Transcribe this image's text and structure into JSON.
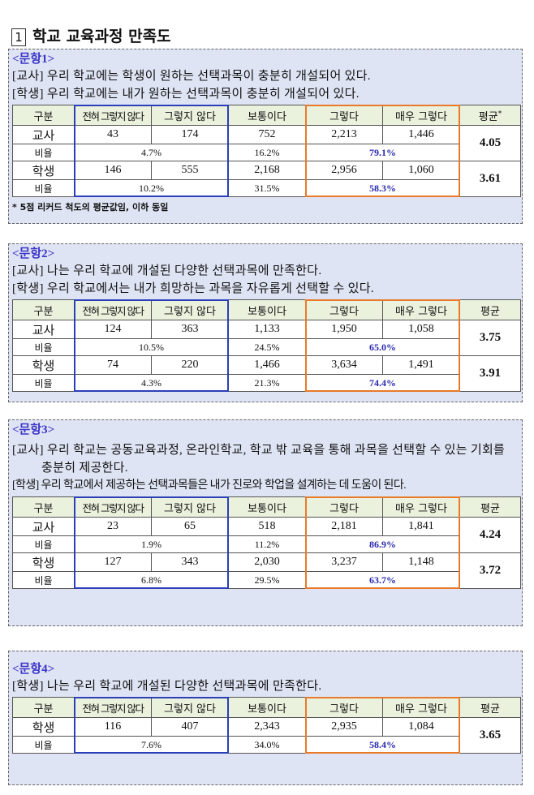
{
  "header": {
    "number": "1",
    "title": "학교 교육과정 만족도"
  },
  "sections": [
    {
      "label": "<문항1>",
      "statements": [
        "[교사] 우리 학교에는 학생이 원하는 선택과목이 충분히 개설되어 있다.",
        "[학생] 우리 학교에는 내가 원하는 선택과목이 충분히 개설되어 있다."
      ],
      "table": {
        "columns": [
          "구분",
          "전혀 그렇지 않다",
          "그렇지 않다",
          "보통이다",
          "그렇다",
          "매우 그렇다",
          "평균"
        ],
        "column_mark": "*",
        "groups": [
          {
            "name": "교사",
            "counts": [
              "43",
              "174",
              "752",
              "2,213",
              "1,446"
            ],
            "ratio_label": "비율",
            "ratios": [
              "4.7%",
              "16.2%",
              "79.1%"
            ],
            "mean": "4.05"
          },
          {
            "name": "학생",
            "counts": [
              "146",
              "555",
              "2,168",
              "2,956",
              "1,060"
            ],
            "ratio_label": "비율",
            "ratios": [
              "10.2%",
              "31.5%",
              "58.3%"
            ],
            "mean": "3.61"
          }
        ]
      },
      "note": "* 5점 리커드 척도의 평균값임, 이하 동일"
    },
    {
      "label": "<문항2>",
      "statements": [
        "[교사] 나는 우리 학교에 개설된 다양한 선택과목에 만족한다.",
        "[학생] 우리 학교에서는 내가 희망하는 과목을 자유롭게 선택할 수 있다."
      ],
      "table": {
        "columns": [
          "구분",
          "전혀 그렇지 않다",
          "그렇지 않다",
          "보통이다",
          "그렇다",
          "매우 그렇다",
          "평균"
        ],
        "groups": [
          {
            "name": "교사",
            "counts": [
              "124",
              "363",
              "1,133",
              "1,950",
              "1,058"
            ],
            "ratio_label": "비율",
            "ratios": [
              "10.5%",
              "24.5%",
              "65.0%"
            ],
            "mean": "3.75"
          },
          {
            "name": "학생",
            "counts": [
              "74",
              "220",
              "1,466",
              "3,634",
              "1,491"
            ],
            "ratio_label": "비율",
            "ratios": [
              "4.3%",
              "21.3%",
              "74.4%"
            ],
            "mean": "3.91"
          }
        ]
      }
    },
    {
      "label": "<문항3>",
      "statements": [
        "[교사] 우리 학교는 공동교육과정, 온라인학교, 학교 밖 교육을 통해 과목을 선택할 수 있는 기회를 충분히 제공한다.",
        "[학생] 우리 학교에서 제공하는 선택과목들은 내가 진로와 학업을 설계하는 데 도움이 된다."
      ],
      "table": {
        "columns": [
          "구분",
          "전혀 그렇지 않다",
          "그렇지 않다",
          "보통이다",
          "그렇다",
          "매우 그렇다",
          "평균"
        ],
        "groups": [
          {
            "name": "교사",
            "counts": [
              "23",
              "65",
              "518",
              "2,181",
              "1,841"
            ],
            "ratio_label": "비율",
            "ratios": [
              "1.9%",
              "11.2%",
              "86.9%"
            ],
            "mean": "4.24"
          },
          {
            "name": "학생",
            "counts": [
              "127",
              "343",
              "2,030",
              "3,237",
              "1,148"
            ],
            "ratio_label": "비율",
            "ratios": [
              "6.8%",
              "29.5%",
              "63.7%"
            ],
            "mean": "3.72"
          }
        ]
      }
    },
    {
      "label": "<문항4>",
      "statements": [
        "[학생] 나는 우리 학교에 개설된 다양한 선택과목에 만족한다."
      ],
      "table": {
        "columns": [
          "구분",
          "전혀 그렇지 않다",
          "그렇지 않다",
          "보통이다",
          "그렇다",
          "매우 그렇다",
          "평균"
        ],
        "groups": [
          {
            "name": "학생",
            "counts": [
              "116",
              "407",
              "2,343",
              "2,935",
              "1,084"
            ],
            "ratio_label": "비율",
            "ratios": [
              "7.6%",
              "34.0%",
              "58.4%"
            ],
            "mean": "3.65"
          }
        ]
      }
    }
  ]
}
